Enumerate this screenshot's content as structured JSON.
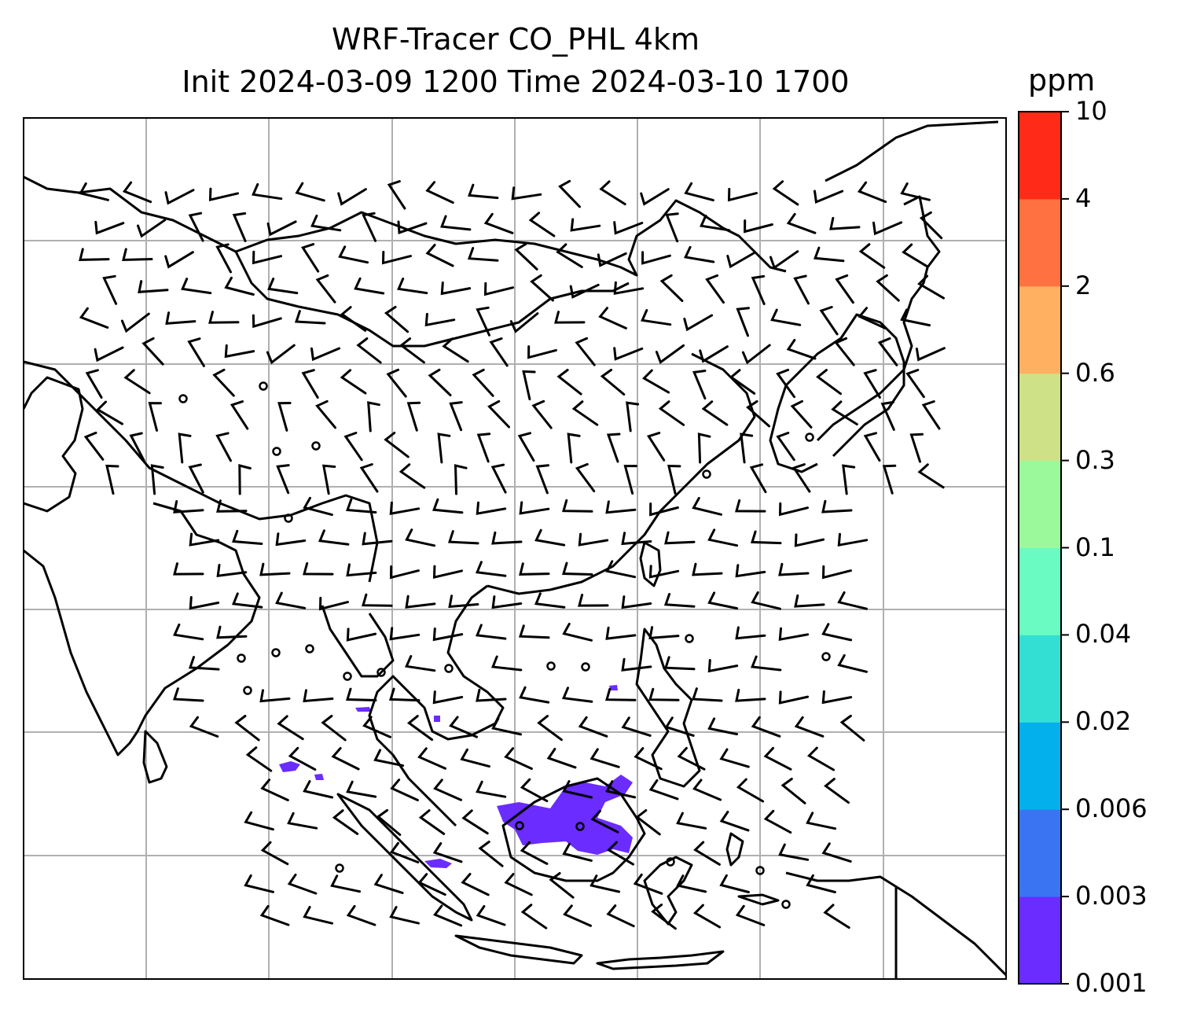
{
  "title_line1": "WRF-Tracer CO_PHL 4km",
  "title_line2": "Init 2024-03-09 1200 Time 2024-03-10 1700",
  "colorbar": {
    "units": "ppm",
    "ticks": [
      "0.001",
      "0.003",
      "0.006",
      "0.02",
      "0.04",
      "0.1",
      "0.3",
      "0.6",
      "2",
      "4",
      "10"
    ],
    "colors": [
      "#6a2cff",
      "#3a74f2",
      "#03b0ec",
      "#33dfd3",
      "#69fbc2",
      "#9bf99b",
      "#cfe187",
      "#ffb060",
      "#ff7140",
      "#ff2a17"
    ]
  },
  "map": {
    "grid": "on",
    "coastline_color": "#000000",
    "tracer_color": "#6a2cff"
  }
}
